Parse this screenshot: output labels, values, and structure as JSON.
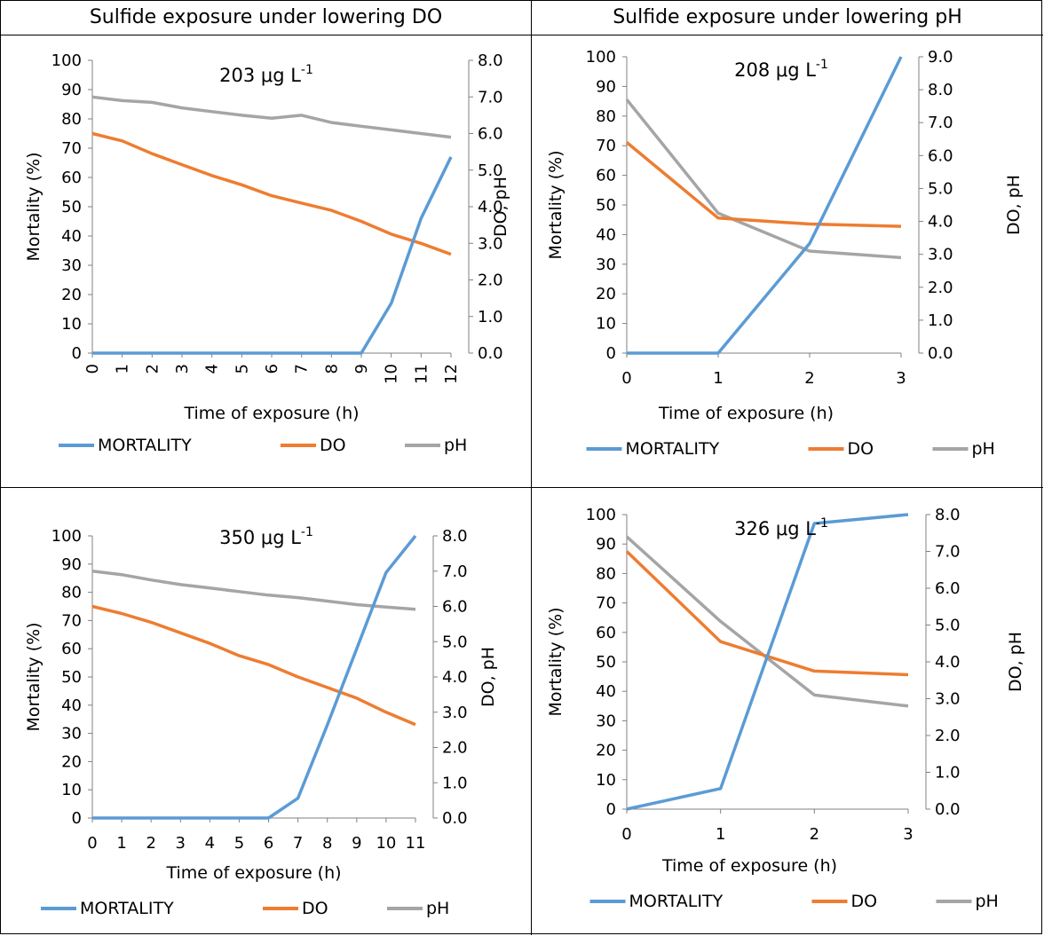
{
  "headers": {
    "left": "Sulfide exposure under lowering DO",
    "right": "Sulfide exposure under lowering pH"
  },
  "colors": {
    "mortality": "#5B9BD5",
    "do": "#ED7D31",
    "ph": "#A5A5A5"
  },
  "chart_data": [
    {
      "type": "line",
      "annotation": "203 μg L",
      "annotation_sup": "-1",
      "xlabel": "Time of exposure (h)",
      "ylabel": "Mortality (%)",
      "y2label": "DO, pH",
      "x": [
        0,
        1,
        2,
        3,
        4,
        5,
        6,
        7,
        8,
        9,
        10,
        11,
        12
      ],
      "ylim": [
        0,
        100
      ],
      "yticks": [
        "0",
        "10",
        "20",
        "30",
        "40",
        "50",
        "60",
        "70",
        "80",
        "90",
        "100"
      ],
      "y2lim": [
        0,
        8
      ],
      "y2ticks": [
        "0.0",
        "1.0",
        "2.0",
        "3.0",
        "4.0",
        "5.0",
        "6.0",
        "7.0",
        "8.0"
      ],
      "series": [
        {
          "name": "MORTALITY",
          "axis": "left",
          "values": [
            0,
            0,
            0,
            0,
            0,
            0,
            0,
            0,
            0,
            0,
            17,
            46,
            67
          ]
        },
        {
          "name": "DO",
          "axis": "right",
          "values": [
            6.0,
            5.8,
            5.45,
            5.15,
            4.85,
            4.6,
            4.3,
            4.1,
            3.9,
            3.6,
            3.25,
            3.0,
            2.7
          ]
        },
        {
          "name": "pH",
          "axis": "right",
          "values": [
            7.0,
            6.9,
            6.85,
            6.7,
            6.6,
            6.5,
            6.42,
            6.5,
            6.3,
            6.2,
            6.1,
            6.0,
            5.9
          ]
        }
      ],
      "legend": [
        "MORTALITY",
        "DO",
        "pH"
      ],
      "legend_position": "bottom"
    },
    {
      "type": "line",
      "annotation": "208 μg L",
      "annotation_sup": "-1",
      "xlabel": "Time of exposure (h)",
      "ylabel": "Mortality (%)",
      "y2label": "DO, pH",
      "x": [
        0,
        1,
        2,
        3
      ],
      "ylim": [
        0,
        100
      ],
      "yticks": [
        "0",
        "10",
        "20",
        "30",
        "40",
        "50",
        "60",
        "70",
        "80",
        "90",
        "100"
      ],
      "y2lim": [
        0,
        9
      ],
      "y2ticks": [
        "0.0",
        "1.0",
        "2.0",
        "3.0",
        "4.0",
        "5.0",
        "6.0",
        "7.0",
        "8.0",
        "9.0"
      ],
      "series": [
        {
          "name": "MORTALITY",
          "axis": "left",
          "values": [
            0,
            0,
            37,
            100
          ]
        },
        {
          "name": "DO",
          "axis": "right",
          "values": [
            6.4,
            4.1,
            3.92,
            3.85
          ]
        },
        {
          "name": "pH",
          "axis": "right",
          "values": [
            7.7,
            4.25,
            3.1,
            2.9
          ]
        }
      ],
      "legend": [
        "MORTALITY",
        "DO",
        "pH"
      ],
      "legend_position": "bottom"
    },
    {
      "type": "line",
      "annotation": "350 μg L",
      "annotation_sup": "-1",
      "xlabel": "Time of exposure (h)",
      "ylabel": "Mortality (%)",
      "y2label": "DO, pH",
      "x": [
        0,
        1,
        2,
        3,
        4,
        5,
        6,
        7,
        8,
        9,
        10,
        11
      ],
      "ylim": [
        0,
        100
      ],
      "yticks": [
        "0",
        "10",
        "20",
        "30",
        "40",
        "50",
        "60",
        "70",
        "80",
        "90",
        "100"
      ],
      "y2lim": [
        0,
        8
      ],
      "y2ticks": [
        "0.0",
        "1.0",
        "2.0",
        "3.0",
        "4.0",
        "5.0",
        "6.0",
        "7.0",
        "8.0"
      ],
      "series": [
        {
          "name": "MORTALITY",
          "axis": "left",
          "values": [
            0,
            0,
            0,
            0,
            0,
            0,
            0,
            7,
            33,
            60,
            87,
            100
          ]
        },
        {
          "name": "DO",
          "axis": "right",
          "values": [
            6.0,
            5.8,
            5.55,
            5.25,
            4.95,
            4.6,
            4.35,
            4.0,
            3.7,
            3.4,
            3.0,
            2.65
          ]
        },
        {
          "name": "pH",
          "axis": "right",
          "values": [
            7.0,
            6.9,
            6.75,
            6.62,
            6.52,
            6.42,
            6.32,
            6.25,
            6.15,
            6.05,
            5.98,
            5.92
          ]
        }
      ],
      "legend": [
        "MORTALITY",
        "DO",
        "pH"
      ],
      "legend_position": "bottom"
    },
    {
      "type": "line",
      "annotation": "326 μg L",
      "annotation_sup": "-1",
      "xlabel": "Time of exposure (h)",
      "ylabel": "Mortality (%)",
      "y2label": "DO, pH",
      "x": [
        0,
        1,
        2,
        3
      ],
      "ylim": [
        0,
        100
      ],
      "yticks": [
        "0",
        "10",
        "20",
        "30",
        "40",
        "50",
        "60",
        "70",
        "80",
        "90",
        "100"
      ],
      "y2lim": [
        0,
        8
      ],
      "y2ticks": [
        "0.0",
        "1.0",
        "2.0",
        "3.0",
        "4.0",
        "5.0",
        "6.0",
        "7.0",
        "8.0"
      ],
      "series": [
        {
          "name": "MORTALITY",
          "axis": "left",
          "values": [
            0,
            7,
            97,
            100
          ]
        },
        {
          "name": "DO",
          "axis": "right",
          "values": [
            7.0,
            4.55,
            3.75,
            3.65
          ]
        },
        {
          "name": "pH",
          "axis": "right",
          "values": [
            7.4,
            5.1,
            3.1,
            2.8
          ]
        }
      ],
      "legend": [
        "MORTALITY",
        "DO",
        "pH"
      ],
      "legend_position": "bottom"
    }
  ]
}
